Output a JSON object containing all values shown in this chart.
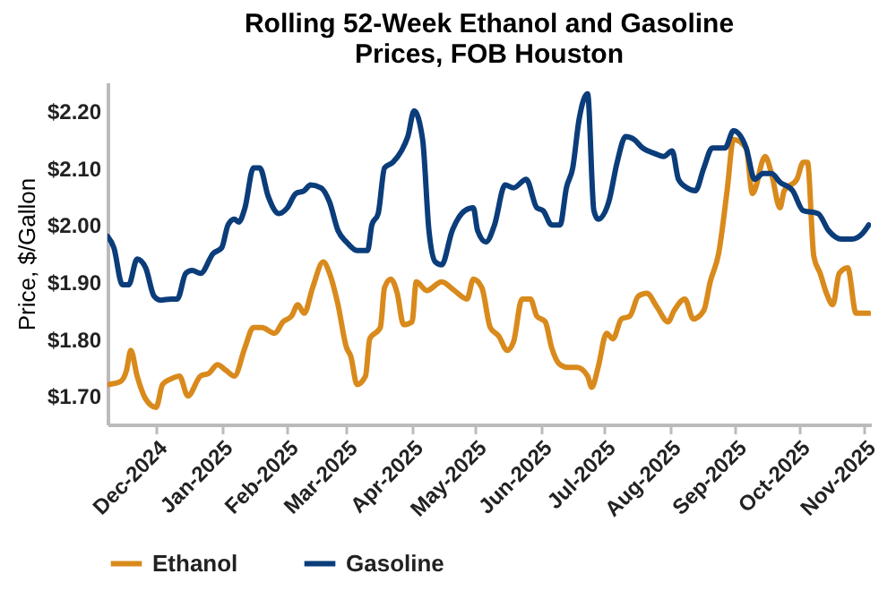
{
  "chart_data": {
    "type": "line",
    "title": "Rolling 52-Week Ethanol and Gasoline\nPrices, FOB Houston",
    "ylabel": "Price, $/Gallon",
    "xlim": [
      "2024-11-08",
      "2025-11-04"
    ],
    "ylim": [
      1.65,
      2.25
    ],
    "xticks": [
      {
        "value": "2024-12-01",
        "label": "Dec-2024"
      },
      {
        "value": "2025-01-01",
        "label": "Jan-2025"
      },
      {
        "value": "2025-02-01",
        "label": "Feb-2025"
      },
      {
        "value": "2025-03-01",
        "label": "Mar-2025"
      },
      {
        "value": "2025-04-01",
        "label": "Apr-2025"
      },
      {
        "value": "2025-05-01",
        "label": "May-2025"
      },
      {
        "value": "2025-06-01",
        "label": "Jun-2025"
      },
      {
        "value": "2025-07-01",
        "label": "Jul-2025"
      },
      {
        "value": "2025-08-01",
        "label": "Aug-2025"
      },
      {
        "value": "2025-09-01",
        "label": "Sep-2025"
      },
      {
        "value": "2025-10-01",
        "label": "Oct-2025"
      },
      {
        "value": "2025-11-01",
        "label": "Nov-2025"
      }
    ],
    "yticks": [
      {
        "value": 1.7,
        "label": "$1.70"
      },
      {
        "value": 1.8,
        "label": "$1.80"
      },
      {
        "value": 1.9,
        "label": "$1.90"
      },
      {
        "value": 2.0,
        "label": "$2.00"
      },
      {
        "value": 2.1,
        "label": "$2.10"
      },
      {
        "value": 2.2,
        "label": "$2.20"
      }
    ],
    "grid": false,
    "legend": "bottom",
    "line_style": "solid",
    "marker": "none",
    "series": [
      {
        "name": "Ethanol",
        "color": "#d98a1c",
        "x": [
          "2024-11-08",
          "2024-11-14",
          "2024-11-17",
          "2024-11-19",
          "2024-11-22",
          "2024-11-26",
          "2024-12-01",
          "2024-12-04",
          "2024-12-08",
          "2024-12-12",
          "2024-12-16",
          "2024-12-22",
          "2024-12-26",
          "2024-12-30",
          "2025-01-03",
          "2025-01-07",
          "2025-01-12",
          "2025-01-16",
          "2025-01-20",
          "2025-01-26",
          "2025-01-30",
          "2025-02-03",
          "2025-02-06",
          "2025-02-09",
          "2025-02-13",
          "2025-02-18",
          "2025-02-21",
          "2025-02-25",
          "2025-03-01",
          "2025-03-03",
          "2025-03-06",
          "2025-03-10",
          "2025-03-12",
          "2025-03-17",
          "2025-03-19",
          "2025-03-22",
          "2025-03-25",
          "2025-03-28",
          "2025-04-01",
          "2025-04-03",
          "2025-04-08",
          "2025-04-15",
          "2025-04-21",
          "2025-04-27",
          "2025-04-30",
          "2025-05-04",
          "2025-05-08",
          "2025-05-12",
          "2025-05-16",
          "2025-05-19",
          "2025-05-23",
          "2025-05-27",
          "2025-05-30",
          "2025-06-03",
          "2025-06-06",
          "2025-06-10",
          "2025-06-14",
          "2025-06-18",
          "2025-06-23",
          "2025-06-25",
          "2025-06-28",
          "2025-07-02",
          "2025-07-05",
          "2025-07-09",
          "2025-07-13",
          "2025-07-17",
          "2025-07-21",
          "2025-07-26",
          "2025-07-31",
          "2025-08-03",
          "2025-08-08",
          "2025-08-12",
          "2025-08-17",
          "2025-08-20",
          "2025-08-24",
          "2025-08-28",
          "2025-08-31",
          "2025-09-06",
          "2025-09-09",
          "2025-09-15",
          "2025-09-18",
          "2025-09-22",
          "2025-09-24",
          "2025-09-30",
          "2025-10-03",
          "2025-10-05",
          "2025-10-08",
          "2025-10-11",
          "2025-10-14",
          "2025-10-17",
          "2025-10-20",
          "2025-10-24",
          "2025-10-28",
          "2025-11-03"
        ],
        "values": [
          1.72,
          1.725,
          1.745,
          1.78,
          1.735,
          1.695,
          1.68,
          1.72,
          1.73,
          1.735,
          1.7,
          1.735,
          1.74,
          1.755,
          1.745,
          1.735,
          1.785,
          1.82,
          1.82,
          1.81,
          1.83,
          1.84,
          1.86,
          1.845,
          1.89,
          1.935,
          1.915,
          1.86,
          1.785,
          1.77,
          1.72,
          1.735,
          1.8,
          1.82,
          1.89,
          1.905,
          1.88,
          1.825,
          1.83,
          1.9,
          1.885,
          1.9,
          1.885,
          1.87,
          1.905,
          1.89,
          1.82,
          1.805,
          1.78,
          1.795,
          1.87,
          1.87,
          1.84,
          1.83,
          1.785,
          1.755,
          1.75,
          1.75,
          1.735,
          1.715,
          1.75,
          1.81,
          1.8,
          1.835,
          1.84,
          1.875,
          1.88,
          1.855,
          1.83,
          1.85,
          1.87,
          1.835,
          1.85,
          1.9,
          1.95,
          2.06,
          2.15,
          2.135,
          2.055,
          2.12,
          2.09,
          2.03,
          2.06,
          2.08,
          2.11,
          2.11,
          1.945,
          1.915,
          1.88,
          1.86,
          1.915,
          1.925,
          1.845,
          1.845
        ]
      },
      {
        "name": "Gasoline",
        "color": "#0b3d7a",
        "x": [
          "2024-11-08",
          "2024-11-11",
          "2024-11-15",
          "2024-11-18",
          "2024-11-22",
          "2024-11-26",
          "2024-11-30",
          "2024-12-03",
          "2024-12-08",
          "2024-12-11",
          "2024-12-15",
          "2024-12-18",
          "2024-12-22",
          "2024-12-28",
          "2025-01-01",
          "2025-01-04",
          "2025-01-07",
          "2025-01-09",
          "2025-01-12",
          "2025-01-16",
          "2025-01-19",
          "2025-01-23",
          "2025-01-28",
          "2025-02-01",
          "2025-02-05",
          "2025-02-09",
          "2025-02-12",
          "2025-02-17",
          "2025-02-21",
          "2025-02-25",
          "2025-03-01",
          "2025-03-06",
          "2025-03-11",
          "2025-03-13",
          "2025-03-16",
          "2025-03-19",
          "2025-03-23",
          "2025-03-27",
          "2025-03-30",
          "2025-04-02",
          "2025-04-06",
          "2025-04-09",
          "2025-04-12",
          "2025-04-15",
          "2025-04-20",
          "2025-04-26",
          "2025-04-30",
          "2025-05-02",
          "2025-05-06",
          "2025-05-10",
          "2025-05-15",
          "2025-05-19",
          "2025-05-25",
          "2025-05-30",
          "2025-06-02",
          "2025-06-06",
          "2025-06-10",
          "2025-06-13",
          "2025-06-16",
          "2025-06-19",
          "2025-06-23",
          "2025-06-26",
          "2025-06-28",
          "2025-07-03",
          "2025-07-07",
          "2025-07-11",
          "2025-07-15",
          "2025-07-19",
          "2025-07-25",
          "2025-07-29",
          "2025-08-02",
          "2025-08-05",
          "2025-08-09",
          "2025-08-13",
          "2025-08-17",
          "2025-08-21",
          "2025-08-27",
          "2025-08-31",
          "2025-09-06",
          "2025-09-10",
          "2025-09-14",
          "2025-09-18",
          "2025-09-22",
          "2025-09-28",
          "2025-10-03",
          "2025-10-10",
          "2025-10-15",
          "2025-10-21",
          "2025-10-26",
          "2025-10-31",
          "2025-11-03"
        ],
        "values": [
          1.98,
          1.96,
          1.895,
          1.895,
          1.94,
          1.925,
          1.875,
          1.868,
          1.87,
          1.87,
          1.915,
          1.92,
          1.915,
          1.95,
          1.96,
          2.0,
          2.01,
          2.005,
          2.03,
          2.1,
          2.1,
          2.05,
          2.02,
          2.03,
          2.055,
          2.06,
          2.07,
          2.065,
          2.04,
          1.99,
          1.97,
          1.955,
          1.955,
          2.0,
          2.02,
          2.1,
          2.11,
          2.13,
          2.155,
          2.2,
          2.15,
          1.99,
          1.935,
          1.93,
          1.99,
          2.025,
          2.03,
          1.99,
          1.97,
          2.0,
          2.07,
          2.065,
          2.08,
          2.03,
          2.025,
          2.0,
          2.0,
          2.065,
          2.1,
          2.185,
          2.23,
          2.025,
          2.01,
          2.04,
          2.11,
          2.155,
          2.15,
          2.135,
          2.125,
          2.12,
          2.13,
          2.08,
          2.065,
          2.06,
          2.1,
          2.135,
          2.135,
          2.165,
          2.135,
          2.08,
          2.09,
          2.09,
          2.075,
          2.06,
          2.025,
          2.02,
          1.99,
          1.975,
          1.975,
          1.985,
          2.0
        ]
      }
    ]
  }
}
